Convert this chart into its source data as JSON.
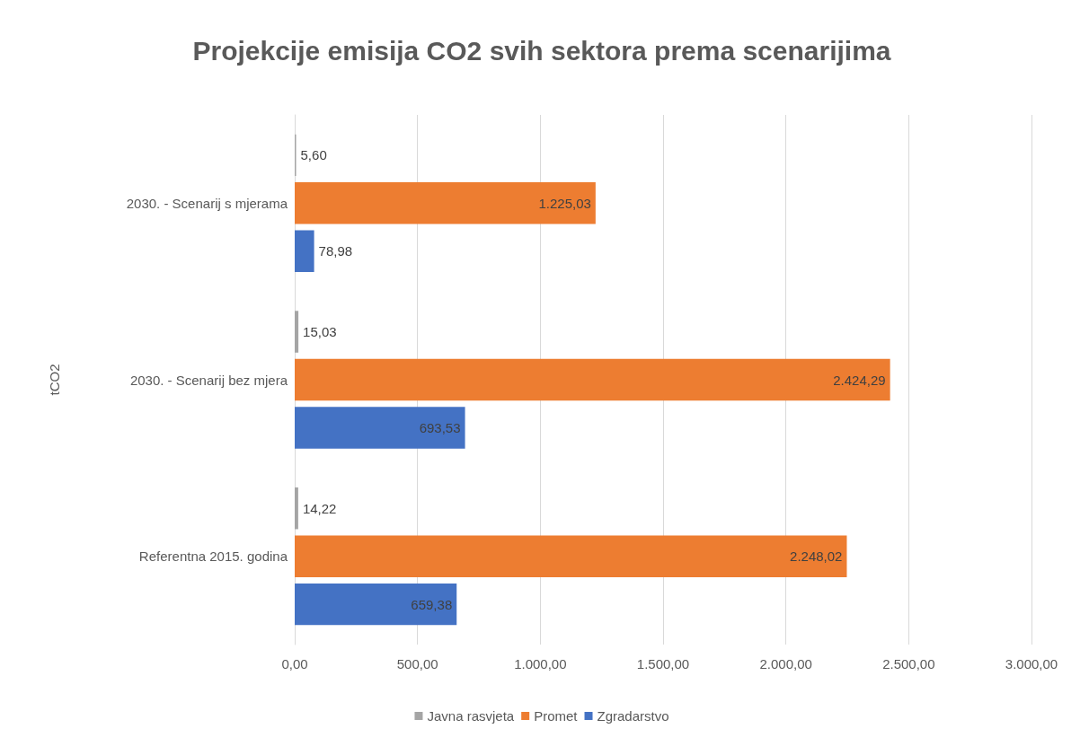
{
  "chart_data": {
    "type": "bar",
    "orientation": "horizontal",
    "title": "Projekcije emisija CO2 svih sektora prema scenarijima",
    "ylabel": "tCO2",
    "categories": [
      "2030. - Scenarij s mjerama",
      "2030. - Scenarij bez mjera",
      "Referentna 2015. godina"
    ],
    "series": [
      {
        "name": "Javna rasvjeta",
        "color": "#a5a5a5",
        "values": [
          5.6,
          15.03,
          14.22
        ],
        "value_labels": [
          "5,60",
          "15,03",
          "14,22"
        ]
      },
      {
        "name": "Promet",
        "color": "#ed7d31",
        "values": [
          1225.03,
          2424.29,
          2248.02
        ],
        "value_labels": [
          "1.225,03",
          "2.424,29",
          "2.248,02"
        ]
      },
      {
        "name": "Zgradarstvo",
        "color": "#4472c4",
        "values": [
          78.98,
          693.53,
          659.38
        ],
        "value_labels": [
          "78,98",
          "693,53",
          "659,38"
        ]
      }
    ],
    "xlim": [
      0,
      3000
    ],
    "xticks": [
      {
        "value": 0,
        "label": "0,00"
      },
      {
        "value": 500,
        "label": "500,00"
      },
      {
        "value": 1000,
        "label": "1.000,00"
      },
      {
        "value": 1500,
        "label": "1.500,00"
      },
      {
        "value": 2000,
        "label": "2.000,00"
      },
      {
        "value": 2500,
        "label": "2.500,00"
      },
      {
        "value": 3000,
        "label": "3.000,00"
      }
    ],
    "grid": "x",
    "legend": "bottom"
  }
}
